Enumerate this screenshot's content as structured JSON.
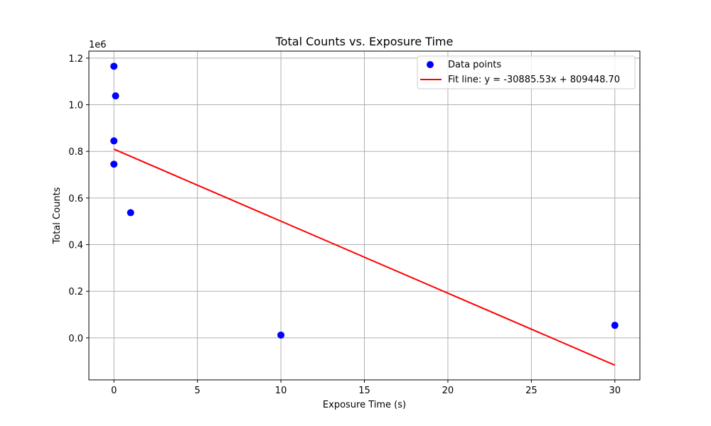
{
  "chart_data": {
    "type": "scatter",
    "title": "Total Counts vs. Exposure Time",
    "xlabel": "Exposure Time (s)",
    "ylabel": "Total Counts",
    "y_offset_label": "1e6",
    "xlim": [
      -1.5,
      31.5
    ],
    "ylim": [
      -180000,
      1230000
    ],
    "x_ticks": [
      0,
      5,
      10,
      15,
      20,
      25,
      30
    ],
    "x_tick_labels": [
      "0",
      "5",
      "10",
      "15",
      "20",
      "25",
      "30"
    ],
    "y_ticks": [
      0,
      200000,
      400000,
      600000,
      800000,
      1000000,
      1200000
    ],
    "y_tick_labels": [
      "0.0",
      "0.2",
      "0.4",
      "0.6",
      "0.8",
      "1.0",
      "1.2"
    ],
    "grid": true,
    "legend_position": "top-right",
    "series": [
      {
        "name": "Data points",
        "kind": "scatter",
        "color": "#0000ff",
        "points": [
          {
            "x": 0.0,
            "y": 1165000
          },
          {
            "x": 0.1,
            "y": 1038000
          },
          {
            "x": 0.0,
            "y": 845000
          },
          {
            "x": 0.0,
            "y": 745000
          },
          {
            "x": 1.0,
            "y": 537000
          },
          {
            "x": 10.0,
            "y": 12000
          },
          {
            "x": 30.0,
            "y": 54000
          }
        ]
      },
      {
        "name": "Fit line: y = -30885.53x + 809448.70",
        "kind": "line",
        "color": "#ff0000",
        "slope": -30885.53,
        "intercept": 809448.7,
        "x_range": [
          0,
          30
        ]
      }
    ]
  }
}
